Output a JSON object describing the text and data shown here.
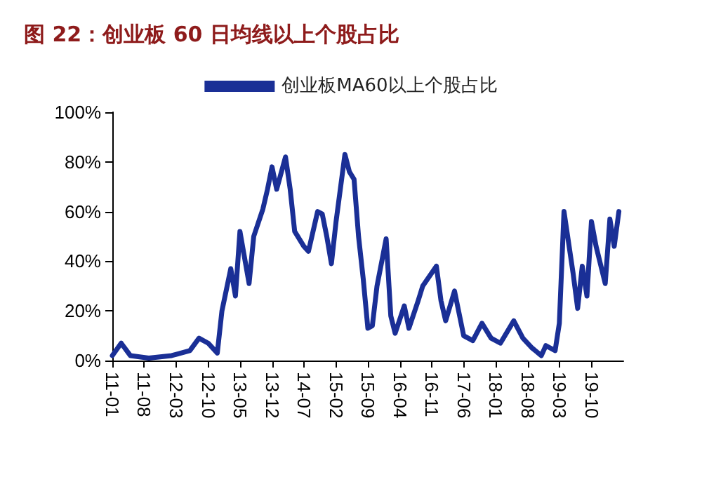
{
  "chart_data": {
    "type": "line",
    "title": "图 22：创业板 60 日均线以上个股占比",
    "x": [
      "2011-01",
      "2011-03",
      "2011-05",
      "2011-09",
      "2012-02",
      "2012-06",
      "2012-08",
      "2012-10",
      "2012-12",
      "2013-01",
      "2013-03",
      "2013-04",
      "2013-05",
      "2013-07",
      "2013-08",
      "2013-10",
      "2013-11",
      "2013-12",
      "2014-01",
      "2014-03",
      "2014-04",
      "2014-05",
      "2014-07",
      "2014-08",
      "2014-10",
      "2014-11",
      "2014-12",
      "2015-01",
      "2015-02",
      "2015-04",
      "2015-05",
      "2015-06",
      "2015-07",
      "2015-08",
      "2015-09",
      "2015-10",
      "2015-11",
      "2016-01",
      "2016-02",
      "2016-03",
      "2016-05",
      "2016-06",
      "2016-08",
      "2016-09",
      "2016-12",
      "2017-01",
      "2017-02",
      "2017-04",
      "2017-06",
      "2017-08",
      "2017-10",
      "2017-12",
      "2018-02",
      "2018-05",
      "2018-07",
      "2018-09",
      "2018-11",
      "2018-12",
      "2019-02",
      "2019-03",
      "2019-04",
      "2019-06",
      "2019-07",
      "2019-08",
      "2019-09",
      "2019-10",
      "2019-11",
      "2020-01",
      "2020-02",
      "2020-03",
      "2020-04"
    ],
    "series": [
      {
        "name": "创业板MA60以上个股占比",
        "color": "#1a2f96",
        "values": [
          2,
          7,
          2,
          1,
          2,
          4,
          9,
          7,
          3,
          20,
          37,
          26,
          52,
          31,
          50,
          61,
          69,
          78,
          69,
          82,
          69,
          52,
          46,
          44,
          60,
          59,
          50,
          39,
          56,
          83,
          76,
          73,
          50,
          33,
          13,
          14,
          30,
          49,
          18,
          11,
          22,
          13,
          24,
          30,
          38,
          24,
          16,
          28,
          10,
          8,
          15,
          9,
          7,
          16,
          9,
          5,
          2,
          6,
          4,
          15,
          60,
          35,
          21,
          38,
          26,
          56,
          46,
          31,
          57,
          46,
          60
        ]
      }
    ],
    "xlim": [
      "2011-01",
      "2020-05"
    ],
    "xticks": [
      {
        "value": "2011-01",
        "label": "11-01"
      },
      {
        "value": "2011-08",
        "label": "11-08"
      },
      {
        "value": "2012-03",
        "label": "12-03"
      },
      {
        "value": "2012-10",
        "label": "12-10"
      },
      {
        "value": "2013-05",
        "label": "13-05"
      },
      {
        "value": "2013-12",
        "label": "13-12"
      },
      {
        "value": "2014-07",
        "label": "14-07"
      },
      {
        "value": "2015-02",
        "label": "15-02"
      },
      {
        "value": "2015-09",
        "label": "15-09"
      },
      {
        "value": "2016-04",
        "label": "16-04"
      },
      {
        "value": "2016-11",
        "label": "16-11"
      },
      {
        "value": "2017-06",
        "label": "17-06"
      },
      {
        "value": "2018-01",
        "label": "18-01"
      },
      {
        "value": "2018-08",
        "label": "18-08"
      },
      {
        "value": "2019-03",
        "label": "19-03"
      },
      {
        "value": "2019-10",
        "label": "19-10"
      }
    ],
    "ylim": [
      0,
      100
    ],
    "yticks": [
      {
        "value": 0,
        "label": "0%"
      },
      {
        "value": 20,
        "label": "20%"
      },
      {
        "value": 40,
        "label": "40%"
      },
      {
        "value": 60,
        "label": "60%"
      },
      {
        "value": 80,
        "label": "80%"
      },
      {
        "value": 100,
        "label": "100%"
      }
    ],
    "legend": "top",
    "grid": false,
    "marker": "none",
    "line_style": "solid"
  }
}
